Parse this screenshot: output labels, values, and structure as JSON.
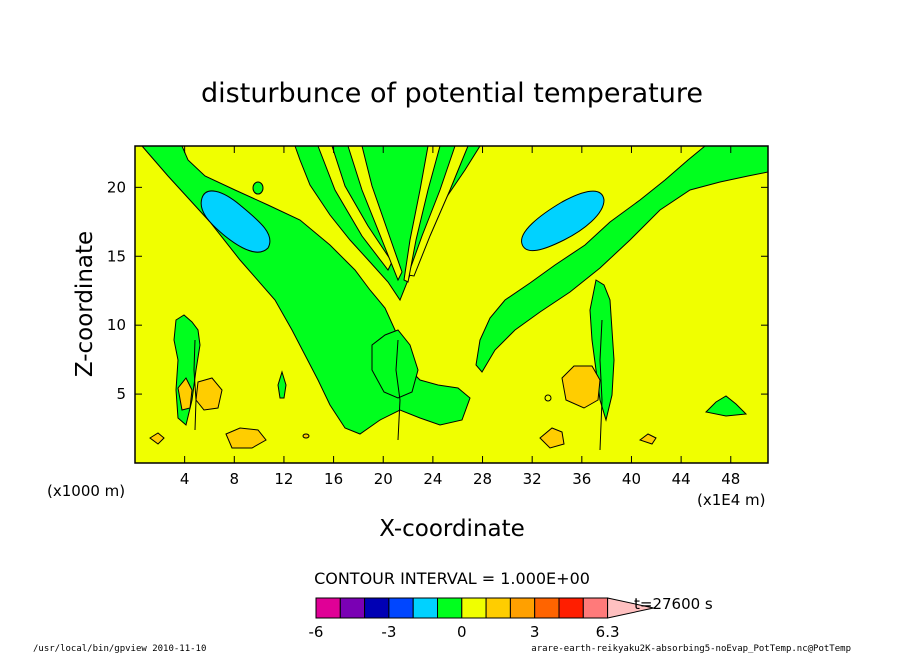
{
  "chart_data": {
    "type": "heatmap",
    "title": "disturbunce of potential temperature",
    "xlabel": "X-coordinate",
    "ylabel": "Z-coordinate",
    "x_unit_note": "(x1E4 m)",
    "y_unit_note": "(x1000 m)",
    "xlim": [
      0,
      51
    ],
    "ylim": [
      0,
      23
    ],
    "x_ticks": [
      "4",
      "8",
      "12",
      "16",
      "20",
      "24",
      "28",
      "32",
      "36",
      "40",
      "44",
      "48"
    ],
    "x_tick_values": [
      4,
      8,
      12,
      16,
      20,
      24,
      28,
      32,
      36,
      40,
      44,
      48
    ],
    "y_ticks": [
      "5",
      "10",
      "15",
      "20"
    ],
    "y_tick_values": [
      5,
      10,
      15,
      20
    ],
    "contour_interval_text": "CONTOUR INTERVAL = 1.000E+00",
    "time_text": "t=27600 s",
    "colorbar": {
      "levels": [
        -6,
        -5,
        -4,
        -3,
        -2,
        -1,
        0,
        1,
        2,
        3,
        4,
        5,
        6.3
      ],
      "labels": [
        "-6",
        "-3",
        "0",
        "3",
        "6.3"
      ],
      "label_values": [
        -6,
        -3,
        0,
        3,
        6.3
      ],
      "colors": [
        "#e00096",
        "#7a00b4",
        "#0000b4",
        "#0046ff",
        "#00d2ff",
        "#00ff1e",
        "#f0ff00",
        "#ffcd00",
        "#ffa000",
        "#ff6400",
        "#ff1e00",
        "#ff7a7a",
        "#ffc0c0"
      ]
    },
    "regions": [
      {
        "value": 0.5,
        "color": "#00ff1e",
        "desc": "wedge lobes, green"
      },
      {
        "value": -0.5,
        "color": "#00d2ff",
        "desc": "upper left/right lenses"
      },
      {
        "value": 1.5,
        "color": "#ffcd00",
        "desc": "orange patches near x=5,36"
      }
    ]
  },
  "footer": {
    "left": "/usr/local/bin/gpview  2010-11-10",
    "right": "arare-earth-reikyaku2K-absorbing5-noEvap_PotTemp.nc@PotTemp"
  }
}
